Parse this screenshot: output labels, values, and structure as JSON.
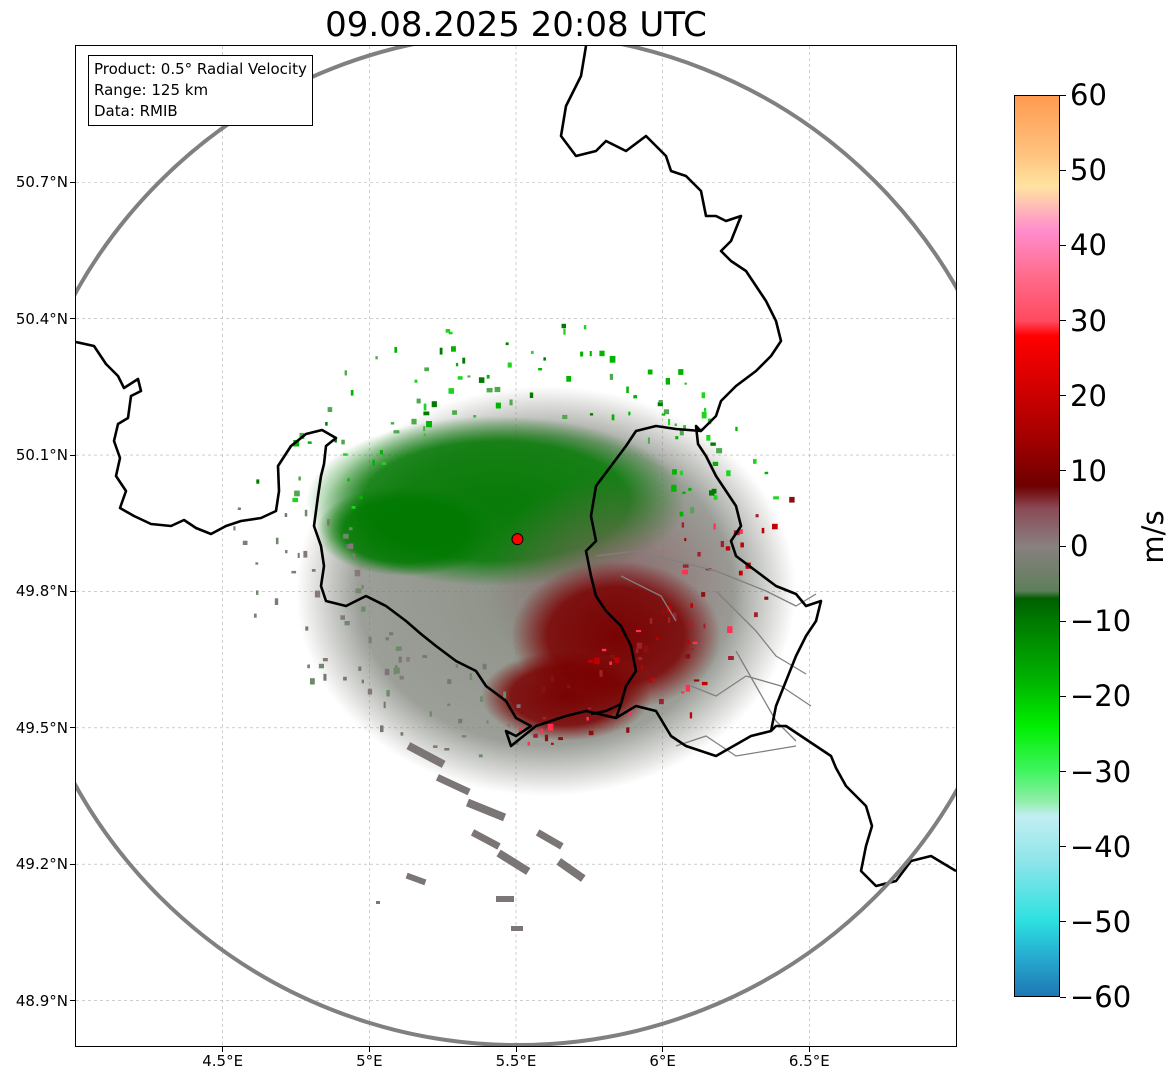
{
  "title": "09.08.2025 20:08 UTC",
  "info": {
    "product": "Product: 0.5° Radial Velocity",
    "range": "Range: 125 km",
    "source": "Data: RMIB"
  },
  "axes": {
    "lat_range": [
      48.8,
      51.0
    ],
    "lon_range": [
      4.0,
      7.0
    ],
    "lat_ticks": [
      {
        "value": 50.7,
        "label": "50.7°N"
      },
      {
        "value": 50.4,
        "label": "50.4°N"
      },
      {
        "value": 50.1,
        "label": "50.1°N"
      },
      {
        "value": 49.8,
        "label": "49.8°N"
      },
      {
        "value": 49.5,
        "label": "49.5°N"
      },
      {
        "value": 49.2,
        "label": "49.2°N"
      },
      {
        "value": 48.9,
        "label": "48.9°N"
      }
    ],
    "lon_ticks": [
      {
        "value": 4.5,
        "label": "4.5°E"
      },
      {
        "value": 5.0,
        "label": "5°E"
      },
      {
        "value": 5.5,
        "label": "5.5°E"
      },
      {
        "value": 6.0,
        "label": "6°E"
      },
      {
        "value": 6.5,
        "label": "6.5°E"
      }
    ],
    "grid": true
  },
  "radar": {
    "lat": 49.915,
    "lon": 5.505,
    "range_km": 125,
    "marker_color": "#ff0000",
    "range_ring_color": "#808080"
  },
  "colorbar": {
    "unit": "m/s",
    "vmin": -60,
    "vmax": 60,
    "ticks": [
      {
        "value": 60,
        "label": "60"
      },
      {
        "value": 50,
        "label": "50"
      },
      {
        "value": 40,
        "label": "40"
      },
      {
        "value": 30,
        "label": "30"
      },
      {
        "value": 20,
        "label": "20"
      },
      {
        "value": 10,
        "label": "10"
      },
      {
        "value": 0,
        "label": "0"
      },
      {
        "value": -10,
        "label": "−10"
      },
      {
        "value": -20,
        "label": "−20"
      },
      {
        "value": -30,
        "label": "−30"
      },
      {
        "value": -40,
        "label": "−40"
      },
      {
        "value": -50,
        "label": "−50"
      },
      {
        "value": -60,
        "label": "−60"
      }
    ],
    "stops": [
      {
        "value": -60,
        "color": "#1f77b4"
      },
      {
        "value": -55,
        "color": "#25a9cf"
      },
      {
        "value": -50,
        "color": "#2de0e0"
      },
      {
        "value": -42,
        "color": "#8ee5ea"
      },
      {
        "value": -36,
        "color": "#c2eef2"
      },
      {
        "value": -34,
        "color": "#90eea8"
      },
      {
        "value": -30,
        "color": "#3ff55f"
      },
      {
        "value": -24,
        "color": "#00ee00"
      },
      {
        "value": -18,
        "color": "#00b400"
      },
      {
        "value": -10,
        "color": "#007a00"
      },
      {
        "value": -7,
        "color": "#005f00"
      },
      {
        "value": -6,
        "color": "#5e7f5a"
      },
      {
        "value": 0,
        "color": "#888080"
      },
      {
        "value": 5,
        "color": "#8a4a55"
      },
      {
        "value": 8,
        "color": "#6e0000"
      },
      {
        "value": 14,
        "color": "#a00000"
      },
      {
        "value": 22,
        "color": "#d80000"
      },
      {
        "value": 28,
        "color": "#ff0000"
      },
      {
        "value": 30,
        "color": "#ff4a60"
      },
      {
        "value": 36,
        "color": "#ff6c8c"
      },
      {
        "value": 42,
        "color": "#ff8ccc"
      },
      {
        "value": 45,
        "color": "#ffb8b8"
      },
      {
        "value": 48,
        "color": "#ffe4a0"
      },
      {
        "value": 52,
        "color": "#ffc480"
      },
      {
        "value": 60,
        "color": "#ff9a50"
      }
    ]
  },
  "colors": {
    "border_line": "#000000",
    "region_line": "#808080",
    "approaching": "#007a00",
    "receding": "#7a0000",
    "near_zero": "#6e8a6a"
  }
}
